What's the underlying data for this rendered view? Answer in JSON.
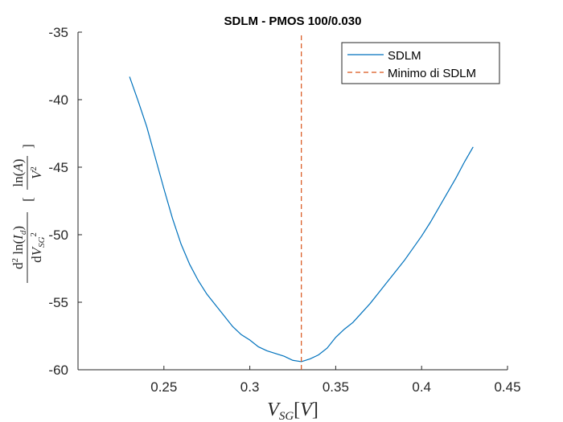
{
  "chart_data": {
    "type": "line",
    "title": "SDLM - PMOS 100/0.030",
    "xlabel": "V_SG[V]",
    "ylabel": "d²ln(I_d) / dV_SG² [ln(A)/V²]",
    "xlim": [
      0.2,
      0.45
    ],
    "ylim": [
      -60,
      -35
    ],
    "xticks": [
      0.25,
      0.3,
      0.35,
      0.4,
      0.45
    ],
    "xtick_labels": [
      "0.25",
      "0.3",
      "0.35",
      "0.4",
      "0.45"
    ],
    "yticks": [
      -35,
      -40,
      -45,
      -50,
      -55,
      -60
    ],
    "ytick_labels": [
      "-35",
      "-40",
      "-45",
      "-50",
      "-55",
      "-60"
    ],
    "grid": false,
    "legend_position": "top-right",
    "series": [
      {
        "name": "SDLM",
        "color": "#0072BD",
        "style": "solid",
        "x": [
          0.23,
          0.235,
          0.24,
          0.245,
          0.25,
          0.255,
          0.26,
          0.265,
          0.27,
          0.275,
          0.28,
          0.285,
          0.29,
          0.295,
          0.3,
          0.305,
          0.31,
          0.315,
          0.32,
          0.325,
          0.33,
          0.335,
          0.34,
          0.345,
          0.35,
          0.355,
          0.36,
          0.365,
          0.37,
          0.375,
          0.38,
          0.385,
          0.39,
          0.395,
          0.4,
          0.405,
          0.41,
          0.415,
          0.42,
          0.425,
          0.43
        ],
        "y": [
          -38.3,
          -40.1,
          -42.0,
          -44.3,
          -46.6,
          -48.8,
          -50.7,
          -52.2,
          -53.4,
          -54.4,
          -55.2,
          -56.0,
          -56.8,
          -57.4,
          -57.8,
          -58.3,
          -58.6,
          -58.8,
          -59.0,
          -59.3,
          -59.4,
          -59.2,
          -58.9,
          -58.4,
          -57.6,
          -57.0,
          -56.5,
          -55.8,
          -55.1,
          -54.3,
          -53.5,
          -52.7,
          -51.9,
          -51.0,
          -50.1,
          -49.1,
          -48.0,
          -46.9,
          -45.8,
          -44.6,
          -43.5
        ]
      },
      {
        "name": "Minimo di SDLM",
        "color": "#D95319",
        "style": "dashed",
        "x": [
          0.33,
          0.33
        ],
        "y": [
          -60,
          -35
        ]
      }
    ]
  }
}
